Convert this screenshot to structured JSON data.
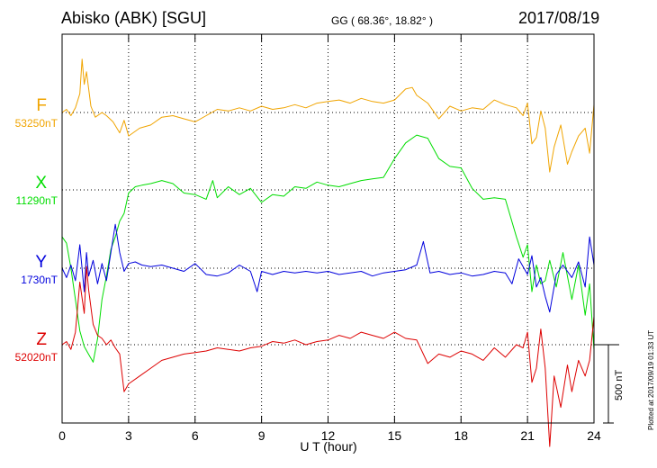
{
  "header": {
    "station": "Abisko (ABK)  [SGU]",
    "coords": "GG ( 68.36°,  18.82° )",
    "date": "2017/08/19"
  },
  "footer": "Plotted at 2017/09/19 01:33 UT",
  "chart_data": {
    "type": "line",
    "xlabel": "U T (hour)",
    "xlim": [
      0,
      24
    ],
    "xticks": [
      "0",
      "3",
      "6",
      "9",
      "12",
      "15",
      "18",
      "21",
      "24"
    ],
    "scale_bar": "500 nT",
    "grid": true,
    "series": [
      {
        "name": "F",
        "baseline": "53250nT",
        "color": "#f0a400",
        "x": [
          0,
          0.2,
          0.4,
          0.6,
          0.8,
          0.9,
          1.0,
          1.1,
          1.3,
          1.5,
          1.8,
          2.0,
          2.3,
          2.6,
          2.8,
          3.0,
          3.5,
          4.0,
          4.5,
          5.0,
          5.5,
          6.0,
          6.5,
          7.0,
          7.5,
          8.0,
          8.5,
          9.0,
          9.5,
          10.0,
          10.5,
          11.0,
          11.5,
          12.0,
          12.5,
          13.0,
          13.5,
          14.0,
          14.5,
          15.0,
          15.5,
          15.8,
          16.0,
          16.5,
          17.0,
          17.5,
          18.0,
          18.5,
          19.0,
          19.5,
          20.0,
          20.5,
          20.8,
          21.0,
          21.2,
          21.4,
          21.6,
          21.8,
          22.0,
          22.2,
          22.5,
          22.8,
          23.0,
          23.3,
          23.6,
          23.8,
          24.0
        ],
        "values": [
          0,
          20,
          -20,
          30,
          120,
          340,
          180,
          260,
          40,
          -30,
          0,
          -20,
          -60,
          -130,
          -50,
          -150,
          -100,
          -80,
          -30,
          -20,
          -40,
          -60,
          -20,
          20,
          10,
          30,
          10,
          40,
          20,
          30,
          50,
          30,
          60,
          70,
          80,
          60,
          90,
          70,
          60,
          80,
          150,
          160,
          110,
          60,
          -40,
          40,
          10,
          30,
          20,
          80,
          50,
          30,
          -20,
          60,
          -200,
          -160,
          10,
          -100,
          -380,
          -220,
          -80,
          -330,
          -250,
          -150,
          -100,
          -260,
          50
        ]
      },
      {
        "name": "X",
        "baseline": "11290nT",
        "color": "#00dd00",
        "x": [
          0,
          0.2,
          0.4,
          0.6,
          0.8,
          1.0,
          1.2,
          1.4,
          1.6,
          1.8,
          2.0,
          2.2,
          2.4,
          2.6,
          2.8,
          3.0,
          3.3,
          3.6,
          4.0,
          4.5,
          5.0,
          5.5,
          6.0,
          6.5,
          6.8,
          7.0,
          7.5,
          8.0,
          8.5,
          9.0,
          9.5,
          10.0,
          10.5,
          11.0,
          11.5,
          12.0,
          12.5,
          13.0,
          13.5,
          14.0,
          14.5,
          15.0,
          15.5,
          16.0,
          16.5,
          17.0,
          17.5,
          18.0,
          18.5,
          19.0,
          19.5,
          20.0,
          20.5,
          20.8,
          21.0,
          21.2,
          21.4,
          21.6,
          21.8,
          22.0,
          22.3,
          22.6,
          23.0,
          23.3,
          23.6,
          23.8,
          24.0
        ],
        "values": [
          -300,
          -340,
          -500,
          -700,
          -900,
          -1000,
          -1050,
          -1100,
          -950,
          -700,
          -550,
          -380,
          -300,
          -200,
          -150,
          -20,
          20,
          30,
          40,
          60,
          40,
          -20,
          -30,
          -60,
          60,
          -50,
          20,
          -30,
          10,
          -80,
          -30,
          -40,
          20,
          10,
          50,
          30,
          20,
          40,
          60,
          70,
          80,
          200,
          300,
          350,
          330,
          200,
          150,
          140,
          10,
          -60,
          -50,
          -60,
          -300,
          -430,
          -350,
          -650,
          -480,
          -600,
          -580,
          -450,
          -620,
          -400,
          -700,
          -480,
          -800,
          -600,
          -1020
        ]
      },
      {
        "name": "Y",
        "baseline": "1730nT",
        "color": "#0000dd",
        "x": [
          0,
          0.2,
          0.4,
          0.6,
          0.8,
          1.0,
          1.1,
          1.2,
          1.4,
          1.6,
          1.8,
          2.0,
          2.2,
          2.4,
          2.6,
          2.8,
          3.0,
          3.3,
          3.6,
          4.0,
          4.5,
          5.0,
          5.5,
          6.0,
          6.5,
          7.0,
          7.5,
          8.0,
          8.5,
          8.8,
          9.0,
          9.5,
          10.0,
          10.5,
          11.0,
          11.5,
          12.0,
          12.5,
          13.0,
          13.5,
          14.0,
          14.5,
          15.0,
          15.5,
          16.0,
          16.3,
          16.6,
          17.0,
          17.5,
          18.0,
          18.5,
          19.0,
          19.5,
          20.0,
          20.3,
          20.6,
          21.0,
          21.2,
          21.4,
          21.6,
          21.8,
          22.0,
          22.3,
          22.6,
          23.0,
          23.3,
          23.6,
          23.8,
          24.0
        ],
        "values": [
          0,
          -60,
          20,
          -80,
          150,
          -150,
          100,
          -50,
          50,
          -100,
          30,
          -80,
          100,
          280,
          100,
          -20,
          30,
          40,
          20,
          10,
          20,
          0,
          -20,
          30,
          -40,
          -50,
          -30,
          20,
          -20,
          -150,
          -20,
          -40,
          -20,
          -30,
          -20,
          -30,
          -20,
          -40,
          -30,
          -20,
          -50,
          -30,
          -20,
          -10,
          20,
          170,
          -30,
          -20,
          -40,
          -30,
          -50,
          -40,
          -20,
          -30,
          -100,
          60,
          -40,
          80,
          -120,
          -60,
          -180,
          -280,
          -40,
          20,
          -60,
          40,
          -120,
          200,
          20
        ]
      },
      {
        "name": "Z",
        "baseline": "52020nT",
        "color": "#dd0000",
        "x": [
          0,
          0.2,
          0.4,
          0.6,
          0.8,
          1.0,
          1.1,
          1.2,
          1.4,
          1.6,
          1.8,
          2.0,
          2.2,
          2.4,
          2.6,
          2.8,
          3.0,
          3.5,
          4.0,
          4.5,
          5.0,
          5.5,
          6.0,
          6.5,
          7.0,
          7.5,
          8.0,
          8.5,
          9.0,
          9.5,
          10.0,
          10.5,
          11.0,
          11.5,
          12.0,
          12.5,
          13.0,
          13.5,
          14.0,
          14.5,
          15.0,
          15.5,
          16.0,
          16.5,
          17.0,
          17.5,
          18.0,
          18.5,
          19.0,
          19.5,
          20.0,
          20.5,
          20.8,
          21.0,
          21.2,
          21.4,
          21.6,
          21.8,
          22.0,
          22.2,
          22.5,
          22.8,
          23.0,
          23.3,
          23.6,
          23.8,
          24.0
        ],
        "values": [
          0,
          20,
          -30,
          80,
          400,
          200,
          500,
          350,
          130,
          60,
          40,
          0,
          30,
          -20,
          -60,
          -300,
          -250,
          -200,
          -150,
          -100,
          -80,
          -60,
          -50,
          -40,
          -20,
          -30,
          -40,
          -20,
          -10,
          20,
          10,
          30,
          0,
          20,
          30,
          60,
          40,
          80,
          60,
          40,
          80,
          40,
          30,
          -120,
          -60,
          -80,
          -40,
          -60,
          -100,
          -20,
          -80,
          0,
          -20,
          80,
          -240,
          -150,
          100,
          -150,
          -650,
          -200,
          -400,
          -130,
          -300,
          -100,
          -200,
          -100,
          180
        ]
      }
    ]
  }
}
